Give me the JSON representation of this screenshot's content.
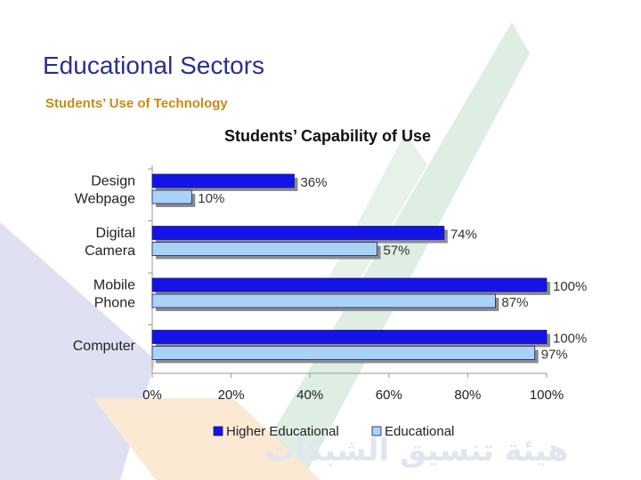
{
  "slide": {
    "title": "Educational Sectors",
    "subtitle": "Students’ Use of Technology",
    "watermark_text": "هيئة تنسيق الشبكات",
    "colors": {
      "title": "#2b2f8f",
      "subtitle": "#c98a12",
      "watermark": "#dfe6ee",
      "bg_purple": "#dfe1f2",
      "bg_green": "#deeee2",
      "bg_orange": "#fbe9d3"
    }
  },
  "chart_data": {
    "type": "bar",
    "orientation": "horizontal",
    "title": "Students’ Capability of Use",
    "categories": [
      [
        "Design",
        "Webpage"
      ],
      [
        "Digital",
        "Camera"
      ],
      [
        "Mobile",
        "Phone"
      ],
      [
        "Computer"
      ]
    ],
    "series": [
      {
        "name": "Higher Educational",
        "color": "#1414e6",
        "values": [
          36,
          74,
          100,
          100
        ],
        "labels": [
          "36%",
          "74%",
          "100%",
          "100%"
        ]
      },
      {
        "name": "Educational",
        "color": "#a9d3f5",
        "values": [
          10,
          57,
          87,
          97
        ],
        "labels": [
          "10%",
          "57%",
          "87%",
          "97%"
        ]
      }
    ],
    "xlim": [
      0,
      100
    ],
    "xticks": [
      "0%",
      "20%",
      "40%",
      "60%",
      "80%",
      "100%"
    ],
    "grid": false,
    "legend": "bottom"
  }
}
